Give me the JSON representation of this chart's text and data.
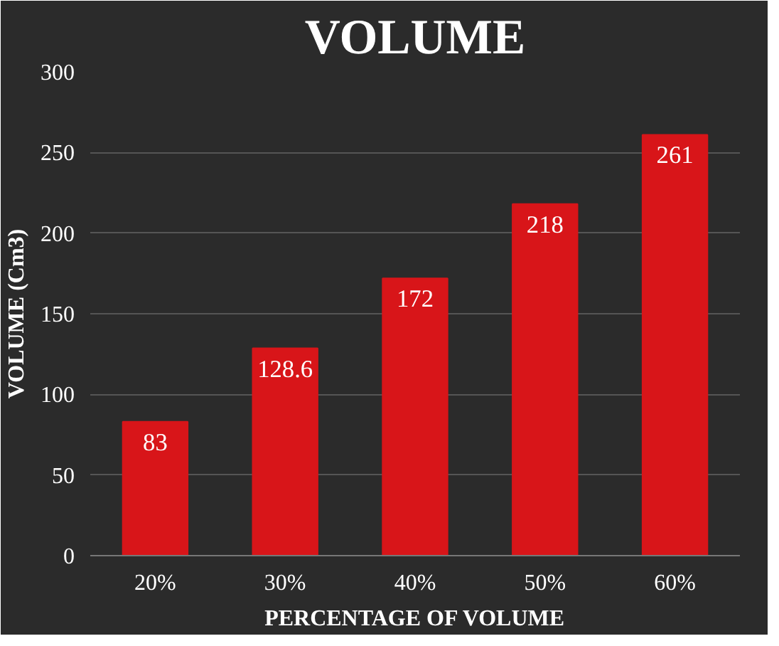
{
  "chart_data": {
    "type": "bar",
    "title": "VOLUME",
    "xlabel": "PERCENTAGE OF VOLUME",
    "ylabel": "VOLUME (Cm3)",
    "categories": [
      "20%",
      "30%",
      "40%",
      "50%",
      "60%"
    ],
    "values": [
      83,
      128.6,
      172,
      218,
      261
    ],
    "color": "#d81519",
    "ylim": [
      0,
      300
    ],
    "yticks": [
      0,
      50,
      100,
      150,
      200,
      250,
      300
    ],
    "grid": "y",
    "data_labels": true
  }
}
